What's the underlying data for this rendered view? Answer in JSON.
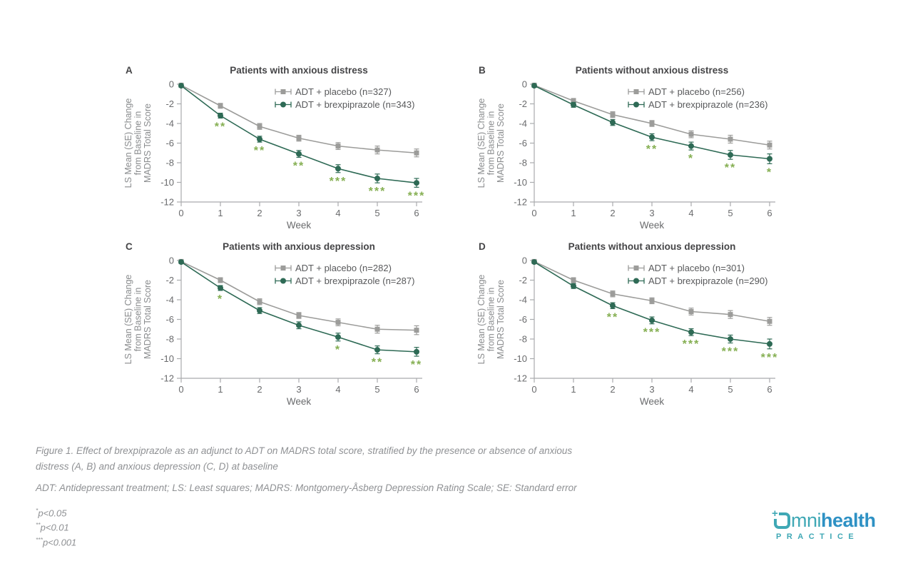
{
  "figure": {
    "caption": "Figure 1. Effect of brexpiprazole as an adjunct to ADT on MADRS total score, stratified by the presence or absence of anxious distress (A, B) and anxious depression (C, D) at baseline",
    "abbreviations": "ADT: Antidepressant treatment; LS: Least squares; MADRS: Montgomery-Åsberg Depression Rating Scale; SE: Standard error",
    "footnotes": [
      {
        "stars": "*",
        "text": "p<0.05"
      },
      {
        "stars": "**",
        "text": "p<0.01"
      },
      {
        "stars": "***",
        "text": "p<0.001"
      }
    ]
  },
  "colors": {
    "placebo": "#9c9c9a",
    "brexpiprazole": "#2e6a55",
    "stars": "#85af52",
    "axis": "#a9abad",
    "logo_teal": "#3fa8b5",
    "logo_blue": "#2e91c4"
  },
  "logo": {
    "mni": "mni",
    "health": "health",
    "practice": "PRACTICE"
  },
  "chart_data": [
    {
      "type": "line",
      "panel": "A",
      "title": "Patients with anxious distress",
      "xlabel": "Week",
      "ylabel_lines": [
        "LS Mean (SE) Change",
        "from Baseline in",
        "MADRS Total Score"
      ],
      "x": [
        0,
        1,
        2,
        3,
        4,
        5,
        6
      ],
      "yticks": [
        0,
        -2,
        -4,
        -6,
        -8,
        -10,
        -12
      ],
      "ylim": [
        -12,
        0
      ],
      "series": [
        {
          "name": "ADT + placebo (n=327)",
          "marker": "square",
          "color": "#9c9c9a",
          "values": [
            -0.1,
            -2.2,
            -4.3,
            -5.5,
            -6.3,
            -6.7,
            -7.0
          ],
          "se": [
            0.15,
            0.25,
            0.3,
            0.3,
            0.35,
            0.4,
            0.4
          ]
        },
        {
          "name": "ADT + brexpiprazole (n=343)",
          "marker": "circle",
          "color": "#2e6a55",
          "values": [
            -0.15,
            -3.2,
            -5.6,
            -7.1,
            -8.6,
            -9.6,
            -10.05
          ],
          "se": [
            0.15,
            0.25,
            0.3,
            0.35,
            0.4,
            0.45,
            0.45
          ]
        }
      ],
      "significance": [
        "",
        "**",
        "**",
        "**",
        "***",
        "***",
        "***"
      ]
    },
    {
      "type": "line",
      "panel": "B",
      "title": "Patients without anxious distress",
      "xlabel": "Week",
      "ylabel_lines": [
        "LS Mean (SE) Change",
        "from Baseline in",
        "MADRS Total Score"
      ],
      "x": [
        0,
        1,
        2,
        3,
        4,
        5,
        6
      ],
      "yticks": [
        0,
        -2,
        -4,
        -6,
        -8,
        -10,
        -12
      ],
      "ylim": [
        -12,
        0
      ],
      "series": [
        {
          "name": "ADT + placebo (n=256)",
          "marker": "square",
          "color": "#9c9c9a",
          "values": [
            -0.1,
            -1.7,
            -3.1,
            -4.0,
            -5.1,
            -5.6,
            -6.2
          ],
          "se": [
            0.15,
            0.25,
            0.3,
            0.3,
            0.35,
            0.4,
            0.4
          ]
        },
        {
          "name": "ADT + brexpiprazole (n=236)",
          "marker": "circle",
          "color": "#2e6a55",
          "values": [
            -0.15,
            -2.1,
            -3.9,
            -5.4,
            -6.3,
            -7.2,
            -7.6
          ],
          "se": [
            0.15,
            0.25,
            0.3,
            0.35,
            0.4,
            0.45,
            0.5
          ]
        }
      ],
      "significance": [
        "",
        "",
        "",
        "**",
        "*",
        "**",
        "*"
      ]
    },
    {
      "type": "line",
      "panel": "C",
      "title": "Patients with anxious depression",
      "xlabel": "Week",
      "ylabel_lines": [
        "LS Mean (SE) Change",
        "from Baseline in",
        "MADRS Total Score"
      ],
      "x": [
        0,
        1,
        2,
        3,
        4,
        5,
        6
      ],
      "yticks": [
        0,
        -2,
        -4,
        -6,
        -8,
        -10,
        -12
      ],
      "ylim": [
        -12,
        0
      ],
      "series": [
        {
          "name": "ADT + placebo (n=282)",
          "marker": "square",
          "color": "#9c9c9a",
          "values": [
            -0.1,
            -2.0,
            -4.2,
            -5.6,
            -6.3,
            -7.0,
            -7.1
          ],
          "se": [
            0.15,
            0.25,
            0.3,
            0.3,
            0.35,
            0.4,
            0.45
          ]
        },
        {
          "name": "ADT + brexpiprazole (n=287)",
          "marker": "circle",
          "color": "#2e6a55",
          "values": [
            -0.15,
            -2.8,
            -5.1,
            -6.6,
            -7.8,
            -9.1,
            -9.3
          ],
          "se": [
            0.15,
            0.25,
            0.3,
            0.35,
            0.4,
            0.4,
            0.45
          ]
        }
      ],
      "significance": [
        "",
        "*",
        "",
        "",
        "*",
        "**",
        "**"
      ]
    },
    {
      "type": "line",
      "panel": "D",
      "title": "Patients without anxious depression",
      "xlabel": "Week",
      "ylabel_lines": [
        "LS Mean (SE) Change",
        "from Baseline in",
        "MADRS Total Score"
      ],
      "x": [
        0,
        1,
        2,
        3,
        4,
        5,
        6
      ],
      "yticks": [
        0,
        -2,
        -4,
        -6,
        -8,
        -10,
        -12
      ],
      "ylim": [
        -12,
        0
      ],
      "series": [
        {
          "name": "ADT + placebo (n=301)",
          "marker": "square",
          "color": "#9c9c9a",
          "values": [
            -0.1,
            -2.0,
            -3.4,
            -4.1,
            -5.2,
            -5.5,
            -6.2
          ],
          "se": [
            0.15,
            0.25,
            0.3,
            0.3,
            0.35,
            0.4,
            0.4
          ]
        },
        {
          "name": "ADT + brexpiprazole (n=290)",
          "marker": "circle",
          "color": "#2e6a55",
          "values": [
            -0.15,
            -2.6,
            -4.6,
            -6.1,
            -7.3,
            -8.0,
            -8.5
          ],
          "se": [
            0.15,
            0.25,
            0.3,
            0.35,
            0.35,
            0.4,
            0.5
          ]
        }
      ],
      "significance": [
        "",
        "",
        "**",
        "***",
        "***",
        "***",
        "***"
      ]
    }
  ]
}
